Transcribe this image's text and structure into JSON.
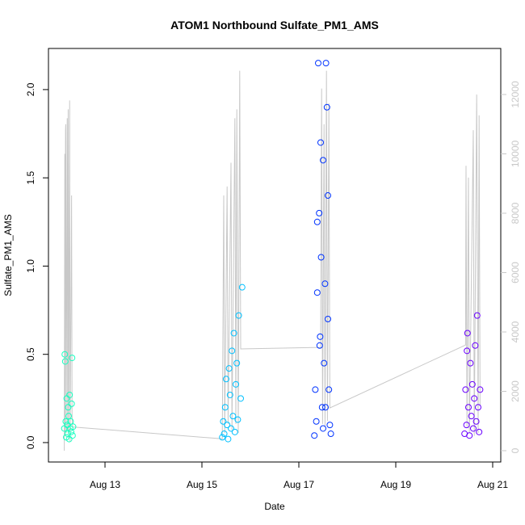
{
  "chart_data": {
    "type": "scatter",
    "title": "ATOM1 Northbound Sulfate_PM1_AMS",
    "x_label": "Date",
    "y_label": "Sulfate_PM1_AMS",
    "xlim": [
      11.833,
      21.167
    ],
    "ylim": [
      -0.11,
      2.233
    ],
    "y2lim": [
      -381,
      13551
    ],
    "xticks": [
      {
        "value": 13,
        "label": "Aug 13"
      },
      {
        "value": 15,
        "label": "Aug 15"
      },
      {
        "value": 17,
        "label": "Aug 17"
      },
      {
        "value": 19,
        "label": "Aug 19"
      },
      {
        "value": 21,
        "label": "Aug 21"
      }
    ],
    "yticks": [
      {
        "value": 0,
        "label": "0.0"
      },
      0.5,
      {
        "value": 1,
        "label": "1.0"
      },
      1.5,
      {
        "value": 2,
        "label": "2.0"
      }
    ],
    "y2ticks": [
      0,
      2000,
      4000,
      6000,
      8000,
      10000,
      12000
    ],
    "y2_color": "#c8c8c8",
    "series": [
      {
        "color": "#c8c8c8",
        "axis": "y2",
        "mode": "line",
        "x": [
          12.16,
          12.17,
          12.175,
          12.185,
          12.19,
          12.2,
          12.22,
          12.23,
          12.24,
          12.25,
          12.27,
          12.28,
          12.31,
          12.32,
          12.33,
          15.42,
          15.45,
          15.47,
          15.52,
          15.54,
          15.6,
          15.62,
          15.68,
          15.7,
          15.72,
          15.75,
          15.78,
          15.8,
          17.45,
          17.47,
          17.49,
          17.52,
          17.54,
          17.57,
          17.59,
          17.62,
          17.64,
          20.44,
          20.45,
          20.47,
          20.5,
          20.52,
          20.6,
          20.62,
          20.67,
          20.7,
          20.72,
          20.74
        ],
        "values": [
          0,
          10000,
          500,
          10800,
          11000,
          600,
          11200,
          700,
          11500,
          400,
          11800,
          300,
          8600,
          1200,
          800,
          400,
          8600,
          600,
          8900,
          900,
          9700,
          700,
          11200,
          900,
          11500,
          600,
          12800,
          3430,
          3480,
          12200,
          900,
          11000,
          800,
          12800,
          1000,
          11700,
          1440,
          3560,
          9600,
          800,
          9200,
          600,
          10800,
          500,
          12000,
          600,
          11300,
          1500
        ]
      },
      {
        "color": "#19ffc0",
        "mode": "points",
        "x": [
          12.16,
          12.17,
          12.18,
          12.19,
          12.2,
          12.21,
          12.22,
          12.23,
          12.24,
          12.25,
          12.26,
          12.27,
          12.28,
          12.29,
          12.3,
          12.31,
          12.32,
          12.33,
          12.34
        ],
        "values": [
          0.08,
          0.5,
          0.46,
          0.12,
          0.03,
          0.25,
          0.1,
          0.05,
          0.2,
          0.15,
          0.02,
          0.27,
          0.08,
          0.12,
          0.06,
          0.22,
          0.48,
          0.04,
          0.09
        ]
      },
      {
        "color": "#00c0ff",
        "mode": "points",
        "x": [
          15.42,
          15.44,
          15.46,
          15.48,
          15.5,
          15.52,
          15.54,
          15.56,
          15.58,
          15.6,
          15.62,
          15.64,
          15.66,
          15.68,
          15.7,
          15.72,
          15.74,
          15.76,
          15.8,
          15.83
        ],
        "values": [
          0.03,
          0.12,
          0.05,
          0.2,
          0.36,
          0.1,
          0.02,
          0.42,
          0.27,
          0.08,
          0.52,
          0.15,
          0.62,
          0.06,
          0.33,
          0.45,
          0.13,
          0.72,
          0.25,
          0.88
        ]
      },
      {
        "color": "#0033ff",
        "mode": "points",
        "x": [
          17.32,
          17.34,
          17.36,
          17.38,
          17.4,
          17.42,
          17.44,
          17.46,
          17.48,
          17.5,
          17.52,
          17.54,
          17.56,
          17.58,
          17.6,
          17.62,
          17.64,
          17.66,
          17.38,
          17.45,
          17.55,
          17.6,
          17.5,
          17.43
        ],
        "values": [
          0.04,
          0.3,
          0.12,
          0.85,
          2.15,
          1.3,
          0.6,
          1.05,
          0.2,
          1.6,
          0.45,
          0.9,
          2.15,
          1.9,
          0.7,
          0.3,
          0.1,
          0.05,
          1.25,
          1.7,
          0.2,
          1.4,
          0.08,
          0.55
        ]
      },
      {
        "color": "#6a00ff",
        "mode": "points",
        "x": [
          20.42,
          20.44,
          20.46,
          20.48,
          20.5,
          20.52,
          20.54,
          20.56,
          20.58,
          20.6,
          20.62,
          20.64,
          20.66,
          20.68,
          20.7,
          20.72,
          20.74,
          20.47
        ],
        "values": [
          0.05,
          0.3,
          0.1,
          0.62,
          0.2,
          0.04,
          0.45,
          0.15,
          0.33,
          0.08,
          0.25,
          0.55,
          0.12,
          0.72,
          0.2,
          0.06,
          0.3,
          0.52
        ]
      }
    ]
  }
}
